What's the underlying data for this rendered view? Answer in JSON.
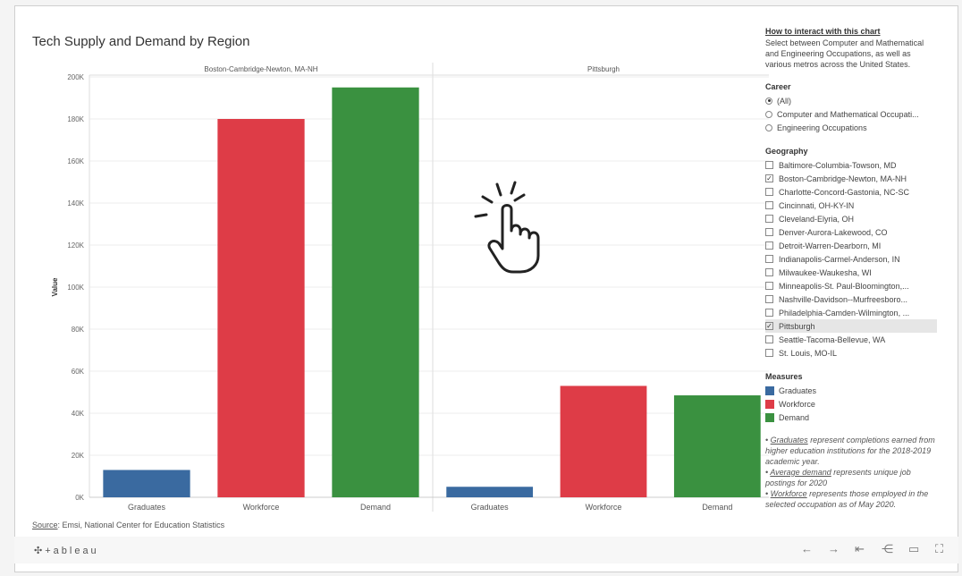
{
  "title": "Tech Supply and Demand by Region",
  "chart_data": {
    "type": "bar",
    "ylabel": "Value",
    "ylim": [
      0,
      200000
    ],
    "yticks": [
      "0K",
      "20K",
      "40K",
      "60K",
      "80K",
      "100K",
      "120K",
      "140K",
      "160K",
      "180K",
      "200K"
    ],
    "categories": [
      "Graduates",
      "Workforce",
      "Demand"
    ],
    "panels": [
      {
        "name": "Boston-Cambridge-Newton, MA-NH",
        "values": [
          13000,
          180000,
          195000
        ]
      },
      {
        "name": "Pittsburgh",
        "values": [
          5000,
          53000,
          48500
        ]
      }
    ],
    "colors": [
      "#3a6aa0",
      "#de3c47",
      "#3a9140"
    ]
  },
  "sidebar": {
    "help_link": "How to interact with this chart",
    "help_text": "Select between Computer and Mathematical and Engineering Occupations, as well as various metros across the United States.",
    "career_title": "Career",
    "career_options": [
      {
        "label": "(All)",
        "selected": true
      },
      {
        "label": "Computer and Mathematical Occupati...",
        "selected": false
      },
      {
        "label": "Engineering Occupations",
        "selected": false
      }
    ],
    "geography_title": "Geography",
    "geography_options": [
      {
        "label": "Baltimore-Columbia-Towson, MD",
        "checked": false
      },
      {
        "label": "Boston-Cambridge-Newton, MA-NH",
        "checked": true
      },
      {
        "label": "Charlotte-Concord-Gastonia, NC-SC",
        "checked": false
      },
      {
        "label": "Cincinnati, OH-KY-IN",
        "checked": false
      },
      {
        "label": "Cleveland-Elyria, OH",
        "checked": false
      },
      {
        "label": "Denver-Aurora-Lakewood, CO",
        "checked": false
      },
      {
        "label": "Detroit-Warren-Dearborn, MI",
        "checked": false
      },
      {
        "label": "Indianapolis-Carmel-Anderson, IN",
        "checked": false
      },
      {
        "label": "Milwaukee-Waukesha, WI",
        "checked": false
      },
      {
        "label": "Minneapolis-St. Paul-Bloomington,...",
        "checked": false
      },
      {
        "label": "Nashville-Davidson--Murfreesboro...",
        "checked": false
      },
      {
        "label": "Philadelphia-Camden-Wilmington, ...",
        "checked": false
      },
      {
        "label": "Pittsburgh",
        "checked": true
      },
      {
        "label": "Seattle-Tacoma-Bellevue, WA",
        "checked": false
      },
      {
        "label": "St. Louis, MO-IL",
        "checked": false
      }
    ],
    "measures_title": "Measures",
    "measures": [
      {
        "label": "Graduates",
        "color": "#3a6aa0"
      },
      {
        "label": "Workforce",
        "color": "#de3c47"
      },
      {
        "label": "Demand",
        "color": "#3a9140"
      }
    ],
    "notes": {
      "n1_term": "Graduates",
      "n1_text": " represent completions earned from higher education institutions for the 2018-2019 academic year.",
      "n2_term": "Average demand",
      "n2_text": " represents unique job postings for 2020",
      "n3_term": "Workforce",
      "n3_text": " represents those employed in the selected occupation as of May 2020."
    }
  },
  "source": {
    "label": "Source",
    "text": ": Emsi, National Center for Education Statistics"
  },
  "footer": {
    "logo": "✣+ableau"
  }
}
